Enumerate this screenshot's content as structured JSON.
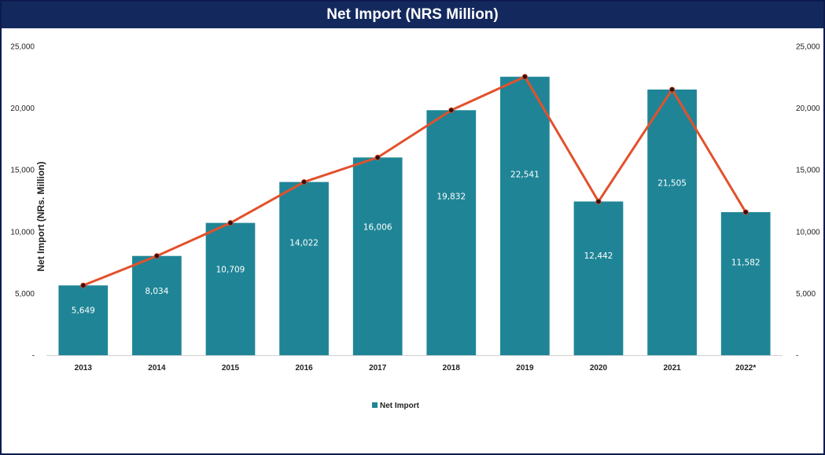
{
  "chart_data": {
    "type": "bar",
    "title": "Net Import (NRS Million)",
    "ylabel": "Net Import (NRs. Million)",
    "xlabel": "",
    "categories": [
      "2013",
      "2014",
      "2015",
      "2016",
      "2017",
      "2018",
      "2019",
      "2020",
      "2021",
      "2022*"
    ],
    "series": [
      {
        "name": "Net Import",
        "values": [
          5649,
          8034,
          10709,
          14022,
          16006,
          19832,
          22541,
          12442,
          21505,
          11582
        ],
        "value_labels": [
          "5,649",
          "8,034",
          "10,709",
          "14,022",
          "16,006",
          "19,832",
          "22,541",
          "12,442",
          "21,505",
          "11,582"
        ],
        "color": "#1f8596"
      }
    ],
    "overlay_line": {
      "values": [
        5649,
        8034,
        10709,
        14022,
        16006,
        19832,
        22541,
        12442,
        21505,
        11582
      ],
      "color": "#e2512c",
      "marker_color": "#3a1010"
    },
    "ylim": [
      0,
      25000
    ],
    "y_ticks": [
      "-",
      "5,000",
      "10,000",
      "15,000",
      "20,000",
      "25,000"
    ],
    "y_tick_values": [
      0,
      5000,
      10000,
      15000,
      20000,
      25000
    ],
    "secondary_axis": true,
    "grid": false,
    "legend": {
      "position": "bottom",
      "entries": [
        "Net Import"
      ]
    },
    "colors": {
      "title_bar": "#13295e",
      "border": "#0d1b4f"
    }
  }
}
